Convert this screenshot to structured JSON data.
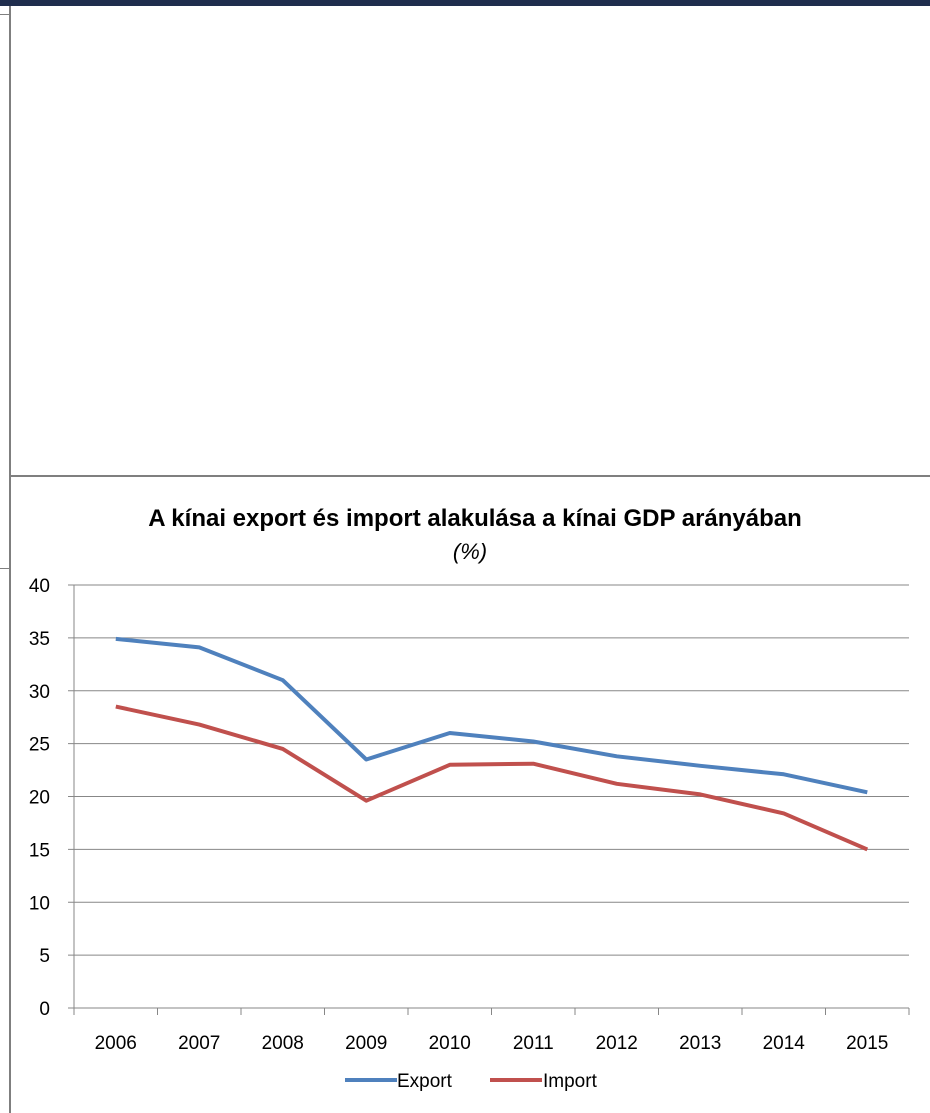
{
  "chart_data": {
    "type": "line",
    "title": "A kínai export és import alakulása a kínai GDP arányában",
    "subtitle": "(%)",
    "xlabel": "",
    "ylabel": "",
    "categories": [
      "2006",
      "2007",
      "2008",
      "2009",
      "2010",
      "2011",
      "2012",
      "2013",
      "2014",
      "2015"
    ],
    "ylim": [
      0,
      40
    ],
    "yticks": [
      0,
      5,
      10,
      15,
      20,
      25,
      30,
      35,
      40
    ],
    "grid": true,
    "legend_position": "bottom",
    "series": [
      {
        "name": "Export",
        "color": "#4f81bd",
        "values": [
          34.9,
          34.1,
          31.0,
          23.5,
          26.0,
          25.2,
          23.8,
          22.9,
          22.1,
          20.4
        ]
      },
      {
        "name": "Import",
        "color": "#c0504d",
        "values": [
          28.5,
          26.8,
          24.5,
          19.6,
          23.0,
          23.1,
          21.2,
          20.2,
          18.4,
          15.0
        ]
      }
    ]
  }
}
